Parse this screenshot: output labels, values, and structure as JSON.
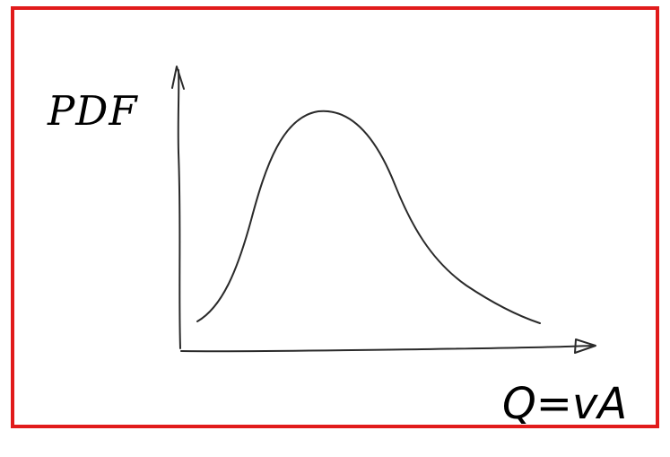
{
  "diagram": {
    "y_axis_label": "PDF",
    "x_axis_label": "Q=vA"
  },
  "colors": {
    "frame_border": "#e11b1b",
    "ink": "#2a2a2a",
    "background": "#ffffff"
  }
}
